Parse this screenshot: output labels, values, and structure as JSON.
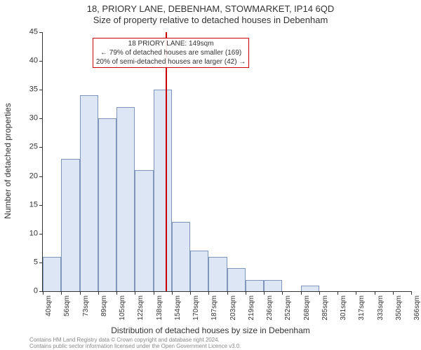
{
  "header": {
    "title": "18, PRIORY LANE, DEBENHAM, STOWMARKET, IP14 6QD",
    "subtitle": "Size of property relative to detached houses in Debenham"
  },
  "chart": {
    "type": "histogram",
    "ylabel": "Number of detached properties",
    "xlabel": "Distribution of detached houses by size in Debenham",
    "ylim": [
      0,
      45
    ],
    "ytick_step": 5,
    "yticks": [
      0,
      5,
      10,
      15,
      20,
      25,
      30,
      35,
      40,
      45
    ],
    "xticks": [
      "40sqm",
      "56sqm",
      "73sqm",
      "89sqm",
      "105sqm",
      "122sqm",
      "138sqm",
      "154sqm",
      "170sqm",
      "187sqm",
      "203sqm",
      "219sqm",
      "236sqm",
      "252sqm",
      "268sqm",
      "285sqm",
      "301sqm",
      "317sqm",
      "333sqm",
      "350sqm",
      "366sqm"
    ],
    "bar_values": [
      6,
      23,
      34,
      30,
      32,
      21,
      35,
      12,
      7,
      6,
      4,
      2,
      2,
      0,
      1,
      0,
      0,
      0,
      0,
      0
    ],
    "bar_fill": "#dde6f4",
    "bar_stroke": "#7f95ba",
    "axis_color": "#333333",
    "background_color": "#ffffff",
    "title_fontsize": 13,
    "label_fontsize": 12,
    "tick_fontsize": 11,
    "xtick_fontsize": 10,
    "bar_width_ratio": 1.0,
    "marker": {
      "position_index": 6.67,
      "color": "#cc0000",
      "width": 2
    },
    "annotation": {
      "lines": [
        "18 PRIORY LANE: 149sqm",
        "← 79% of detached houses are smaller (169)",
        "20% of semi-detached houses are larger (42) →"
      ],
      "border_color": "#cc0000",
      "text_color": "#333333",
      "left_index": 2.7,
      "top_value": 44
    }
  },
  "footer": {
    "line1": "Contains HM Land Registry data © Crown copyright and database right 2024.",
    "line2": "Contains public sector information licensed under the Open Government Licence v3.0."
  }
}
